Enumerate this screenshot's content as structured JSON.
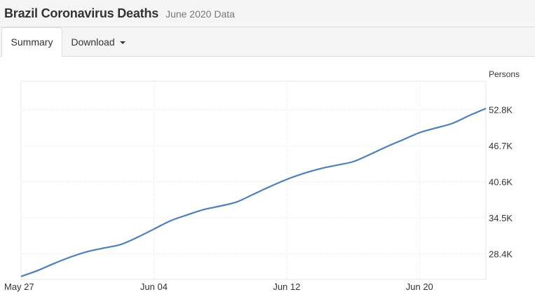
{
  "header": {
    "title": "Brazil Coronavirus Deaths",
    "subtitle": "June 2020 Data"
  },
  "tabs": {
    "summary": "Summary",
    "download": "Download"
  },
  "chart_data": {
    "type": "line",
    "ylabel": "Persons",
    "xlim": [
      "2020-05-27",
      "2020-06-24"
    ],
    "ylim": [
      24100,
      57600
    ],
    "yticks": [
      28400,
      34500,
      40600,
      46700,
      52800
    ],
    "ytick_labels": [
      "28.4K",
      "34.5K",
      "40.6K",
      "46.7K",
      "52.8K"
    ],
    "xticks": [
      "2020-05-27",
      "2020-06-04",
      "2020-06-12",
      "2020-06-20"
    ],
    "xtick_labels": [
      "May 27",
      "Jun 04",
      "Jun 12",
      "Jun 20"
    ],
    "grid": true,
    "line_color": "#4f7fb8",
    "series": [
      {
        "x": [
          "2020-05-27",
          "2020-05-28",
          "2020-05-29",
          "2020-05-30",
          "2020-05-31",
          "2020-06-01",
          "2020-06-02",
          "2020-06-03",
          "2020-06-04",
          "2020-06-05",
          "2020-06-06",
          "2020-06-07",
          "2020-06-08",
          "2020-06-09",
          "2020-06-10",
          "2020-06-11",
          "2020-06-12",
          "2020-06-13",
          "2020-06-14",
          "2020-06-15",
          "2020-06-16",
          "2020-06-17",
          "2020-06-18",
          "2020-06-19",
          "2020-06-20",
          "2020-06-21",
          "2020-06-22",
          "2020-06-23",
          "2020-06-24"
        ],
        "values": [
          24600,
          25600,
          26800,
          27900,
          28800,
          29400,
          30000,
          31200,
          32600,
          34000,
          35000,
          35900,
          36500,
          37200,
          38500,
          39800,
          41000,
          42000,
          42800,
          43400,
          44000,
          45200,
          46500,
          47700,
          48900,
          49700,
          50500,
          51800,
          53000
        ]
      }
    ]
  }
}
